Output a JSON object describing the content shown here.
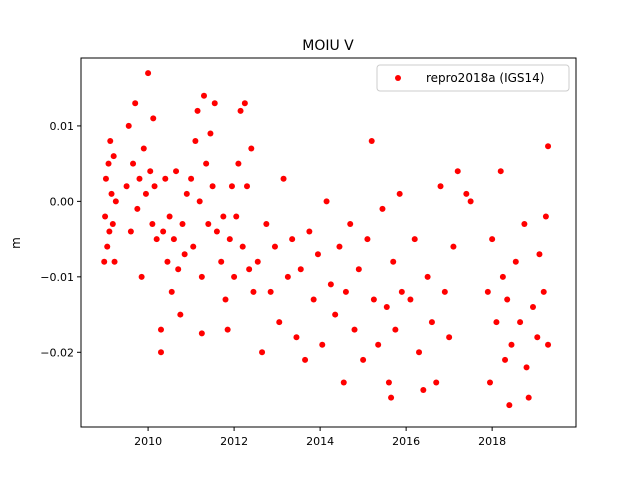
{
  "chart_data": {
    "type": "scatter",
    "title": "MOIU V",
    "xlabel": "",
    "ylabel": "m",
    "xlim": [
      2008.44,
      2019.95
    ],
    "ylim": [
      -0.0299,
      0.019
    ],
    "xticks": [
      2010,
      2012,
      2014,
      2016,
      2018
    ],
    "xtick_labels": [
      "2010",
      "2012",
      "2014",
      "2016",
      "2018"
    ],
    "yticks": [
      0.01,
      0.0,
      -0.01,
      -0.02
    ],
    "ytick_labels": [
      "0.01",
      "0.00",
      "−0.01",
      "−0.02"
    ],
    "grid": false,
    "legend": {
      "entries": [
        "repro2018a (IGS14)"
      ],
      "placement": "top-right"
    },
    "series": [
      {
        "name": "repro2018a (IGS14)",
        "color": "#ff0000",
        "points": [
          [
            2009.0,
            -0.002
          ],
          [
            2009.02,
            0.003
          ],
          [
            2009.05,
            -0.006
          ],
          [
            2009.08,
            0.005
          ],
          [
            2009.1,
            -0.004
          ],
          [
            2009.12,
            0.008
          ],
          [
            2009.15,
            0.001
          ],
          [
            2009.18,
            -0.003
          ],
          [
            2009.2,
            0.006
          ],
          [
            2009.22,
            -0.008
          ],
          [
            2009.25,
            0.0
          ],
          [
            2008.98,
            -0.008
          ],
          [
            2009.5,
            0.002
          ],
          [
            2009.55,
            0.01
          ],
          [
            2009.6,
            -0.004
          ],
          [
            2009.65,
            0.005
          ],
          [
            2009.7,
            0.013
          ],
          [
            2009.75,
            -0.001
          ],
          [
            2009.8,
            0.003
          ],
          [
            2009.85,
            -0.01
          ],
          [
            2009.9,
            0.007
          ],
          [
            2009.95,
            0.001
          ],
          [
            2010.0,
            0.017
          ],
          [
            2010.05,
            0.004
          ],
          [
            2010.1,
            -0.003
          ],
          [
            2010.12,
            0.011
          ],
          [
            2010.15,
            0.002
          ],
          [
            2010.2,
            -0.005
          ],
          [
            2010.3,
            -0.017
          ],
          [
            2010.3,
            -0.02
          ],
          [
            2010.35,
            -0.004
          ],
          [
            2010.4,
            0.003
          ],
          [
            2010.45,
            -0.008
          ],
          [
            2010.5,
            -0.002
          ],
          [
            2010.55,
            -0.012
          ],
          [
            2010.6,
            -0.005
          ],
          [
            2010.65,
            0.004
          ],
          [
            2010.7,
            -0.009
          ],
          [
            2010.75,
            -0.015
          ],
          [
            2010.8,
            -0.003
          ],
          [
            2010.85,
            -0.007
          ],
          [
            2010.9,
            0.001
          ],
          [
            2011.0,
            0.003
          ],
          [
            2011.05,
            -0.006
          ],
          [
            2011.1,
            0.008
          ],
          [
            2011.15,
            0.012
          ],
          [
            2011.2,
            0.0
          ],
          [
            2011.25,
            -0.01
          ],
          [
            2011.3,
            0.014
          ],
          [
            2011.35,
            0.005
          ],
          [
            2011.4,
            -0.003
          ],
          [
            2011.45,
            0.009
          ],
          [
            2011.5,
            0.002
          ],
          [
            2011.55,
            0.013
          ],
          [
            2011.6,
            -0.004
          ],
          [
            2011.25,
            -0.0175
          ],
          [
            2011.7,
            -0.008
          ],
          [
            2011.75,
            -0.002
          ],
          [
            2011.8,
            -0.013
          ],
          [
            2011.85,
            -0.017
          ],
          [
            2011.9,
            -0.005
          ],
          [
            2011.95,
            0.002
          ],
          [
            2012.0,
            -0.01
          ],
          [
            2012.05,
            -0.002
          ],
          [
            2012.1,
            0.005
          ],
          [
            2012.15,
            0.012
          ],
          [
            2012.2,
            -0.006
          ],
          [
            2012.25,
            0.013
          ],
          [
            2012.3,
            0.002
          ],
          [
            2012.35,
            -0.009
          ],
          [
            2012.4,
            0.007
          ],
          [
            2012.45,
            -0.012
          ],
          [
            2012.55,
            -0.008
          ],
          [
            2012.65,
            -0.02
          ],
          [
            2012.75,
            -0.003
          ],
          [
            2012.85,
            -0.012
          ],
          [
            2012.95,
            -0.006
          ],
          [
            2013.05,
            -0.016
          ],
          [
            2013.15,
            0.003
          ],
          [
            2013.25,
            -0.01
          ],
          [
            2013.35,
            -0.005
          ],
          [
            2013.45,
            -0.018
          ],
          [
            2013.55,
            -0.009
          ],
          [
            2013.65,
            -0.021
          ],
          [
            2013.75,
            -0.004
          ],
          [
            2013.85,
            -0.013
          ],
          [
            2013.95,
            -0.007
          ],
          [
            2014.05,
            -0.019
          ],
          [
            2014.15,
            0.0
          ],
          [
            2014.25,
            -0.011
          ],
          [
            2014.35,
            -0.015
          ],
          [
            2014.45,
            -0.006
          ],
          [
            2014.55,
            -0.024
          ],
          [
            2014.6,
            -0.012
          ],
          [
            2014.7,
            -0.003
          ],
          [
            2014.8,
            -0.017
          ],
          [
            2014.9,
            -0.009
          ],
          [
            2015.0,
            -0.021
          ],
          [
            2015.1,
            -0.005
          ],
          [
            2015.2,
            0.008
          ],
          [
            2015.25,
            -0.013
          ],
          [
            2015.35,
            -0.019
          ],
          [
            2015.45,
            -0.001
          ],
          [
            2015.55,
            -0.014
          ],
          [
            2015.6,
            -0.024
          ],
          [
            2015.65,
            -0.026
          ],
          [
            2015.7,
            -0.008
          ],
          [
            2015.75,
            -0.017
          ],
          [
            2015.85,
            0.001
          ],
          [
            2015.9,
            -0.012
          ],
          [
            2016.1,
            -0.013
          ],
          [
            2016.2,
            -0.005
          ],
          [
            2016.3,
            -0.02
          ],
          [
            2016.4,
            -0.025
          ],
          [
            2016.5,
            -0.01
          ],
          [
            2016.6,
            -0.016
          ],
          [
            2016.7,
            -0.024
          ],
          [
            2016.8,
            0.002
          ],
          [
            2016.9,
            -0.012
          ],
          [
            2017.0,
            -0.018
          ],
          [
            2017.1,
            -0.006
          ],
          [
            2017.2,
            0.004
          ],
          [
            2017.4,
            0.001
          ],
          [
            2017.5,
            0.0
          ],
          [
            2017.9,
            -0.012
          ],
          [
            2017.95,
            -0.024
          ],
          [
            2018.0,
            -0.005
          ],
          [
            2018.1,
            -0.016
          ],
          [
            2018.2,
            0.004
          ],
          [
            2018.25,
            -0.01
          ],
          [
            2018.3,
            -0.021
          ],
          [
            2018.35,
            -0.013
          ],
          [
            2018.4,
            -0.027
          ],
          [
            2018.45,
            -0.019
          ],
          [
            2018.55,
            -0.008
          ],
          [
            2018.65,
            -0.016
          ],
          [
            2018.75,
            -0.003
          ],
          [
            2018.8,
            -0.022
          ],
          [
            2018.85,
            -0.026
          ],
          [
            2018.95,
            -0.014
          ],
          [
            2019.05,
            -0.018
          ],
          [
            2019.1,
            -0.007
          ],
          [
            2019.2,
            -0.012
          ],
          [
            2019.25,
            -0.002
          ],
          [
            2019.3,
            0.0073
          ],
          [
            2019.3,
            -0.019
          ]
        ]
      }
    ]
  }
}
